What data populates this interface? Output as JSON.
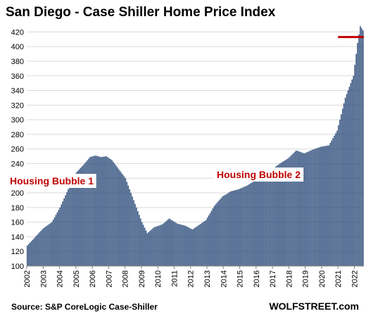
{
  "chart_data": {
    "type": "bar",
    "title": "San Diego - Case Shiller Home Price Index",
    "xlabel": "",
    "ylabel": "",
    "ylim": [
      100,
      430
    ],
    "yticks": [
      100,
      120,
      140,
      160,
      180,
      200,
      220,
      240,
      260,
      280,
      300,
      320,
      340,
      360,
      380,
      400,
      420
    ],
    "x_tick_labels": [
      "2002",
      "2003",
      "2004",
      "2005",
      "2006",
      "2007",
      "2008",
      "2009",
      "2010",
      "2011",
      "2012",
      "2013",
      "2014",
      "2015",
      "2016",
      "2017",
      "2018",
      "2019",
      "2020",
      "2021",
      "2022"
    ],
    "grid": true,
    "bar_color": "#2e4d7b",
    "annotation_color": "#c00000",
    "reference_line_value": 413,
    "anchors": [
      [
        "2002-01",
        128
      ],
      [
        "2002-07",
        140
      ],
      [
        "2003-01",
        152
      ],
      [
        "2003-07",
        160
      ],
      [
        "2004-01",
        180
      ],
      [
        "2004-07",
        205
      ],
      [
        "2005-01",
        228
      ],
      [
        "2005-07",
        240
      ],
      [
        "2005-11",
        249
      ],
      [
        "2006-03",
        251
      ],
      [
        "2006-07",
        249
      ],
      [
        "2006-11",
        250
      ],
      [
        "2007-03",
        245
      ],
      [
        "2007-07",
        235
      ],
      [
        "2008-01",
        220
      ],
      [
        "2008-07",
        190
      ],
      [
        "2009-01",
        160
      ],
      [
        "2009-05",
        145
      ],
      [
        "2009-10",
        153
      ],
      [
        "2010-04",
        157
      ],
      [
        "2010-09",
        165
      ],
      [
        "2011-03",
        158
      ],
      [
        "2011-09",
        155
      ],
      [
        "2012-02",
        150
      ],
      [
        "2012-06",
        155
      ],
      [
        "2012-12",
        163
      ],
      [
        "2013-06",
        182
      ],
      [
        "2013-12",
        195
      ],
      [
        "2014-06",
        202
      ],
      [
        "2014-12",
        205
      ],
      [
        "2015-06",
        210
      ],
      [
        "2015-12",
        217
      ],
      [
        "2016-06",
        224
      ],
      [
        "2016-12",
        232
      ],
      [
        "2017-06",
        240
      ],
      [
        "2017-12",
        247
      ],
      [
        "2018-06",
        258
      ],
      [
        "2018-12",
        254
      ],
      [
        "2019-06",
        259
      ],
      [
        "2019-12",
        263
      ],
      [
        "2020-06",
        265
      ],
      [
        "2020-12",
        285
      ],
      [
        "2021-06",
        330
      ],
      [
        "2021-12",
        360
      ],
      [
        "2022-03",
        405
      ],
      [
        "2022-05",
        428
      ],
      [
        "2022-07",
        422
      ]
    ],
    "annotations": [
      {
        "text": "Housing Bubble 1",
        "near": "2005-09"
      },
      {
        "text": "Housing Bubble 2",
        "near": "2016-06"
      }
    ],
    "source": "Source: S&P CoreLogic Case-Shiller",
    "brand": "WOLFSTREET.com"
  }
}
